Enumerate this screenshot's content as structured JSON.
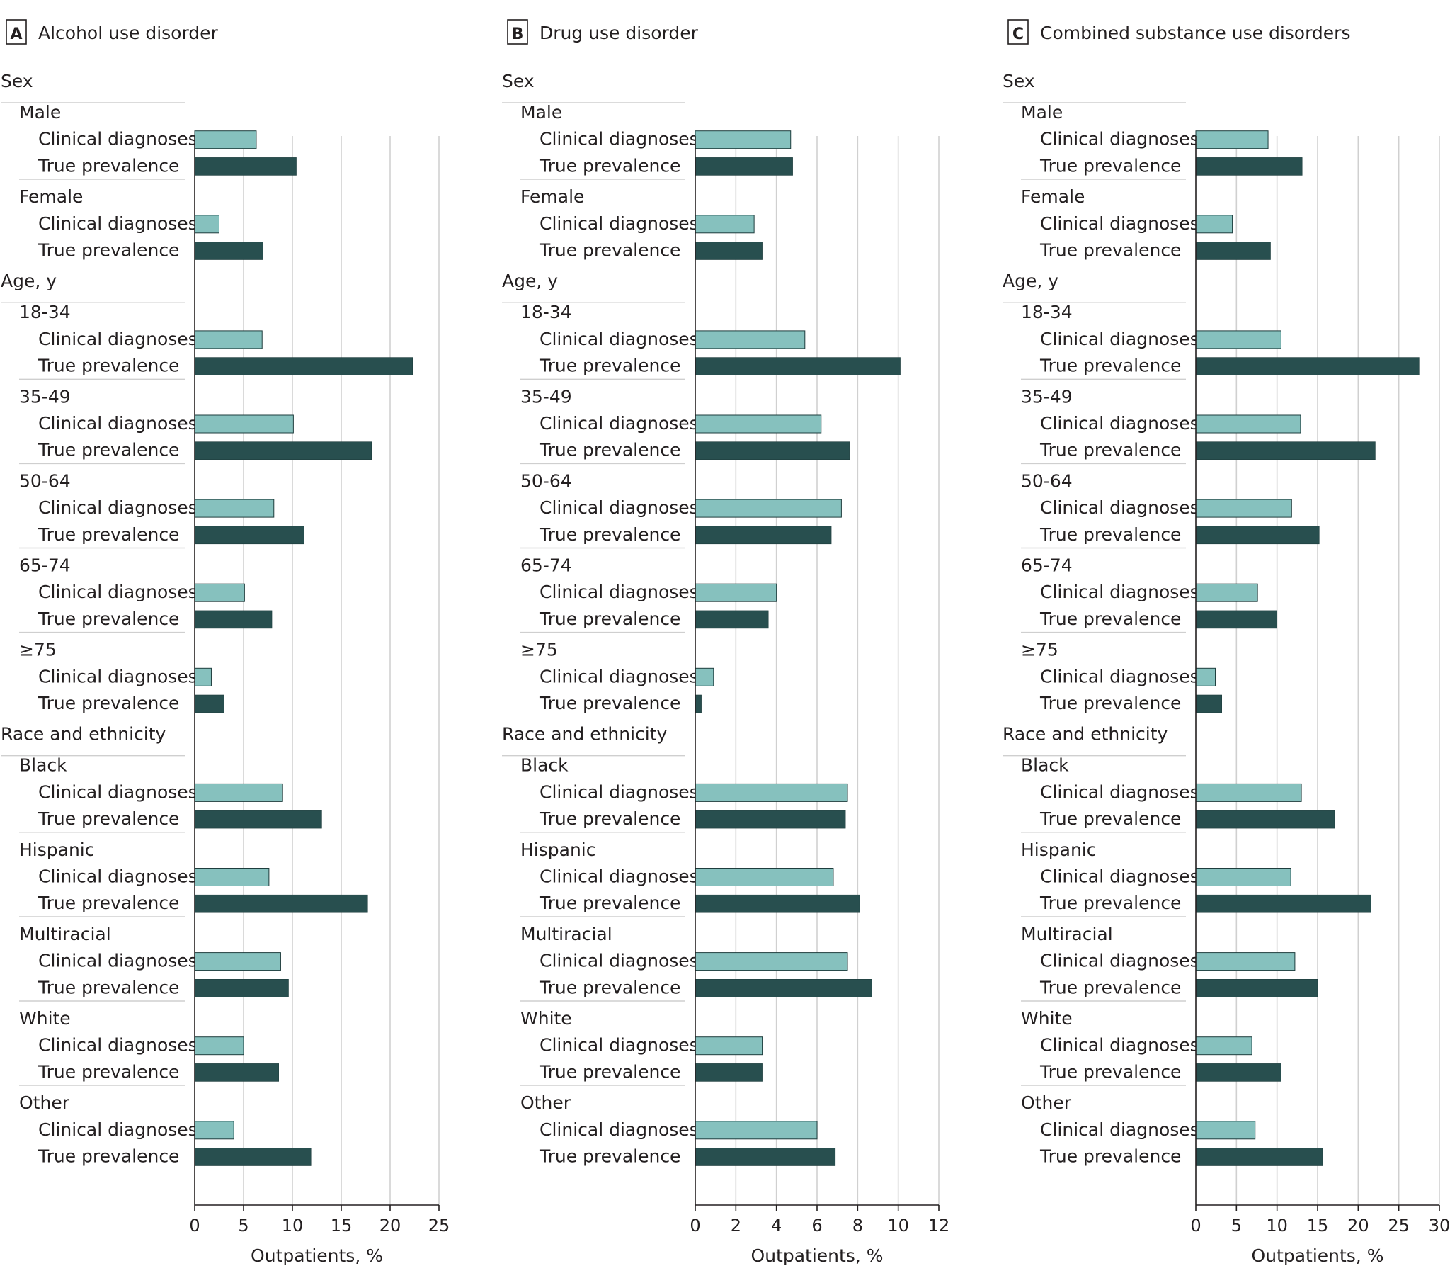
{
  "chart_data": [
    {
      "type": "bar",
      "orientation": "horizontal",
      "panel_letter": "A",
      "title": "Alcohol use disorder",
      "xlabel": "Outpatients, %",
      "xlim": [
        0,
        25
      ],
      "xticks": [
        "0",
        "5",
        "10",
        "15",
        "20",
        "25"
      ],
      "grid": true,
      "series_labels": [
        "Clinical diagnoses",
        "True prevalence"
      ],
      "groups": [
        {
          "title": "Sex",
          "categories": [
            {
              "label": "Male",
              "values": [
                6.3,
                10.4
              ]
            },
            {
              "label": "Female",
              "values": [
                2.5,
                7.0
              ]
            }
          ]
        },
        {
          "title": "Age, y",
          "categories": [
            {
              "label": "18-34",
              "values": [
                6.9,
                22.3
              ]
            },
            {
              "label": "35-49",
              "values": [
                10.1,
                18.1
              ]
            },
            {
              "label": "50-64",
              "values": [
                8.1,
                11.2
              ]
            },
            {
              "label": "65-74",
              "values": [
                5.1,
                7.9
              ]
            },
            {
              "label": "≥75",
              "values": [
                1.7,
                3.0
              ]
            }
          ]
        },
        {
          "title": "Race and ethnicity",
          "categories": [
            {
              "label": "Black",
              "values": [
                9.0,
                13.0
              ]
            },
            {
              "label": "Hispanic",
              "values": [
                7.6,
                17.7
              ]
            },
            {
              "label": "Multiracial",
              "values": [
                8.8,
                9.6
              ]
            },
            {
              "label": "White",
              "values": [
                5.0,
                8.6
              ]
            },
            {
              "label": "Other",
              "values": [
                4.0,
                11.9
              ]
            }
          ]
        }
      ]
    },
    {
      "type": "bar",
      "orientation": "horizontal",
      "panel_letter": "B",
      "title": "Drug use disorder",
      "xlabel": "Outpatients, %",
      "xlim": [
        0,
        12
      ],
      "xticks": [
        "0",
        "2",
        "4",
        "6",
        "8",
        "10",
        "12"
      ],
      "grid": true,
      "series_labels": [
        "Clinical diagnoses",
        "True prevalence"
      ],
      "groups": [
        {
          "title": "Sex",
          "categories": [
            {
              "label": "Male",
              "values": [
                4.7,
                4.8
              ]
            },
            {
              "label": "Female",
              "values": [
                2.9,
                3.3
              ]
            }
          ]
        },
        {
          "title": "Age, y",
          "categories": [
            {
              "label": "18-34",
              "values": [
                5.4,
                10.1
              ]
            },
            {
              "label": "35-49",
              "values": [
                6.2,
                7.6
              ]
            },
            {
              "label": "50-64",
              "values": [
                7.2,
                6.7
              ]
            },
            {
              "label": "65-74",
              "values": [
                4.0,
                3.6
              ]
            },
            {
              "label": "≥75",
              "values": [
                0.9,
                0.3
              ]
            }
          ]
        },
        {
          "title": "Race and ethnicity",
          "categories": [
            {
              "label": "Black",
              "values": [
                7.5,
                7.4
              ]
            },
            {
              "label": "Hispanic",
              "values": [
                6.8,
                8.1
              ]
            },
            {
              "label": "Multiracial",
              "values": [
                7.5,
                8.7
              ]
            },
            {
              "label": "White",
              "values": [
                3.3,
                3.3
              ]
            },
            {
              "label": "Other",
              "values": [
                6.0,
                6.9
              ]
            }
          ]
        }
      ]
    },
    {
      "type": "bar",
      "orientation": "horizontal",
      "panel_letter": "C",
      "title": "Combined substance use disorders",
      "xlabel": "Outpatients, %",
      "xlim": [
        0,
        30
      ],
      "xticks": [
        "0",
        "5",
        "10",
        "15",
        "20",
        "25",
        "30"
      ],
      "grid": true,
      "series_labels": [
        "Clinical diagnoses",
        "True prevalence"
      ],
      "groups": [
        {
          "title": "Sex",
          "categories": [
            {
              "label": "Male",
              "values": [
                8.9,
                13.1
              ]
            },
            {
              "label": "Female",
              "values": [
                4.5,
                9.2
              ]
            }
          ]
        },
        {
          "title": "Age, y",
          "categories": [
            {
              "label": "18-34",
              "values": [
                10.5,
                27.5
              ]
            },
            {
              "label": "35-49",
              "values": [
                12.9,
                22.1
              ]
            },
            {
              "label": "50-64",
              "values": [
                11.8,
                15.2
              ]
            },
            {
              "label": "65-74",
              "values": [
                7.6,
                10.0
              ]
            },
            {
              "label": "≥75",
              "values": [
                2.4,
                3.2
              ]
            }
          ]
        },
        {
          "title": "Race and ethnicity",
          "categories": [
            {
              "label": "Black",
              "values": [
                13.0,
                17.1
              ]
            },
            {
              "label": "Hispanic",
              "values": [
                11.7,
                21.6
              ]
            },
            {
              "label": "Multiracial",
              "values": [
                12.2,
                15.0
              ]
            },
            {
              "label": "White",
              "values": [
                6.9,
                10.5
              ]
            },
            {
              "label": "Other",
              "values": [
                7.3,
                15.6
              ]
            }
          ]
        }
      ]
    }
  ],
  "colors": {
    "clinical": "#86c1be",
    "true": "#284f4f",
    "grid": "#d0d0d0",
    "separator": "#cfcfcf",
    "text": "#231f20"
  }
}
